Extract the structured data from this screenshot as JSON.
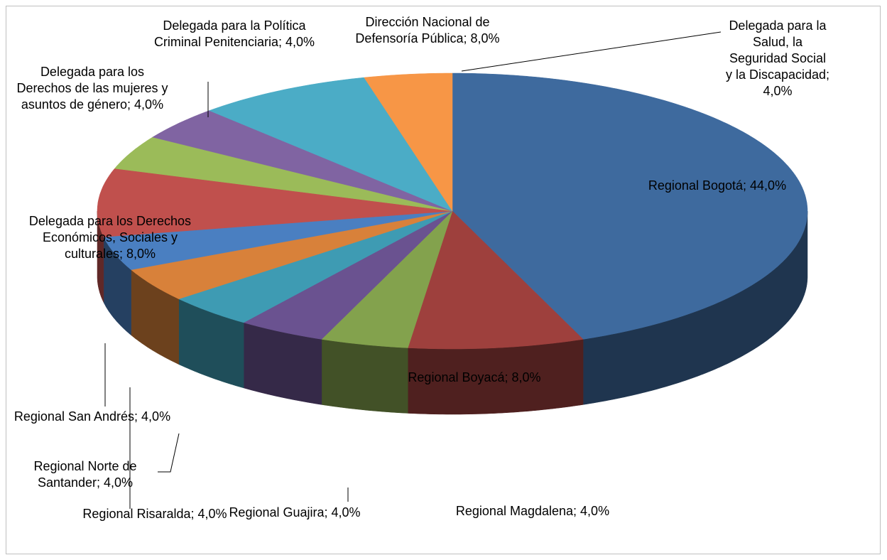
{
  "chart_data": {
    "type": "pie3d",
    "categories": [
      "Regional Bogotá",
      "Regional Boyacá",
      "Regional Magdalena",
      "Regional Guajira",
      "Regional Risaralda",
      "Regional Norte de Santander",
      "Regional San Andrés",
      "Delegada para los Derechos Económicos, Sociales y culturales",
      "Delegada para los Derechos de las mujeres y asuntos de género",
      "Delegada para la Política Criminal Penitenciaria",
      "Dirección Nacional de Defensoría Pública",
      "Delegada para la Salud, la Seguridad Social y la Discapacidad"
    ],
    "values": [
      44,
      8,
      4,
      4,
      4,
      4,
      4,
      8,
      4,
      4,
      8,
      4
    ],
    "value_labels": [
      "44,0%",
      "8,0%",
      "4,0%",
      "4,0%",
      "4,0%",
      "4,0%",
      "4,0%",
      "8,0%",
      "4,0%",
      "4,0%",
      "8,0%",
      "4,0%"
    ],
    "label_separator": "; ",
    "colors": [
      "#3E6A9E",
      "#9E403D",
      "#83A24D",
      "#6A5290",
      "#3E9BB3",
      "#D8813A",
      "#4A7FC1",
      "#C0504D",
      "#9BBB59",
      "#8064A2",
      "#4BACC6",
      "#F79646"
    ]
  }
}
